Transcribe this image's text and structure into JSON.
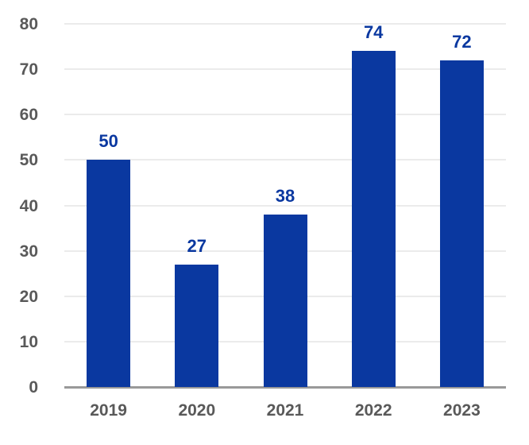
{
  "chart_data": {
    "type": "bar",
    "title": "",
    "xlabel": "",
    "ylabel": "",
    "categories": [
      "2019",
      "2020",
      "2021",
      "2022",
      "2023"
    ],
    "values": [
      50,
      27,
      38,
      74,
      72
    ],
    "data_labels": [
      "50",
      "27",
      "38",
      "74",
      "72"
    ],
    "ylim": [
      0,
      80
    ],
    "ytick_step": 10,
    "yticks": [
      "0",
      "10",
      "20",
      "30",
      "40",
      "50",
      "60",
      "70",
      "80"
    ],
    "grid": "horizontal gridlines on",
    "legend": "none",
    "colors": {
      "bar": "#0a38a0",
      "data_label": "#0a38a0",
      "axis_tick_label": "#595959",
      "gridline": "#ebebeb",
      "axis_line": "#999999",
      "background": "#ffffff"
    }
  }
}
